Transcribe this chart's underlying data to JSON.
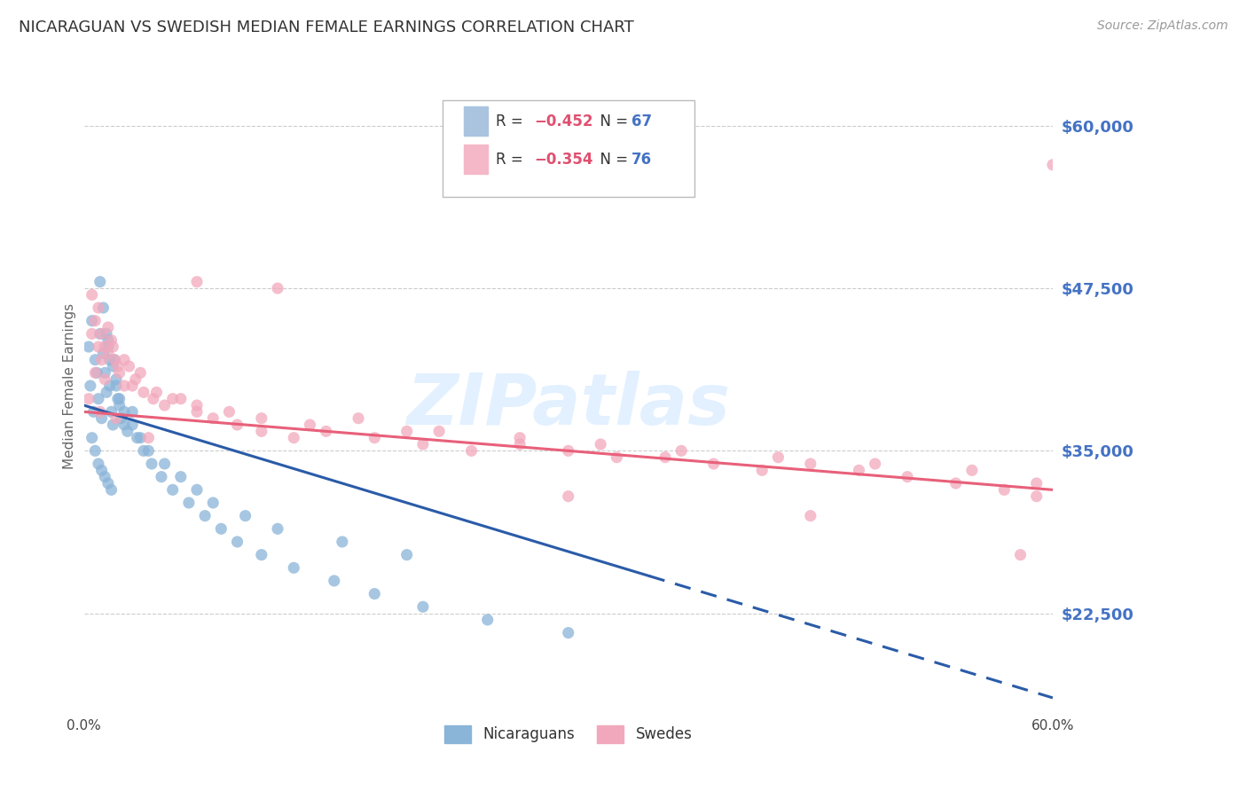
{
  "title": "NICARAGUAN VS SWEDISH MEDIAN FEMALE EARNINGS CORRELATION CHART",
  "source": "Source: ZipAtlas.com",
  "ylabel": "Median Female Earnings",
  "yticks": [
    22500,
    35000,
    47500,
    60000
  ],
  "ytick_labels": [
    "$22,500",
    "$35,000",
    "$47,500",
    "$60,000"
  ],
  "xmin": 0.0,
  "xmax": 60.0,
  "ymin": 15000,
  "ymax": 65000,
  "watermark": "ZIPatlas",
  "blue_scatter_color": "#8ab4d8",
  "pink_scatter_color": "#f2a8bc",
  "blue_line_color": "#2a5ba8",
  "pink_line_color": "#e8607a",
  "title_color": "#333333",
  "axis_label_color": "#666666",
  "tick_label_color": "#4472c4",
  "grid_color": "#cccccc",
  "blue_legend_fill": "#aac4e0",
  "pink_legend_fill": "#f4b8c8",
  "legend_r_color": "#e05070",
  "legend_n_color": "#4472c4",
  "nic_x": [
    0.3,
    0.4,
    0.5,
    0.6,
    0.7,
    0.8,
    0.9,
    1.0,
    1.1,
    1.2,
    1.3,
    1.4,
    1.5,
    1.6,
    1.7,
    1.8,
    1.9,
    2.0,
    2.1,
    2.2,
    2.3,
    2.5,
    2.7,
    3.0,
    3.3,
    3.7,
    4.2,
    4.8,
    5.5,
    6.5,
    7.5,
    8.5,
    9.5,
    11.0,
    13.0,
    15.5,
    18.0,
    21.0,
    25.0,
    30.0,
    1.0,
    1.2,
    1.4,
    1.5,
    1.6,
    1.8,
    2.0,
    2.2,
    2.5,
    3.0,
    3.5,
    4.0,
    5.0,
    6.0,
    7.0,
    8.0,
    10.0,
    12.0,
    16.0,
    20.0,
    0.5,
    0.7,
    0.9,
    1.1,
    1.3,
    1.5,
    1.7
  ],
  "nic_y": [
    43000,
    40000,
    45000,
    38000,
    42000,
    41000,
    39000,
    44000,
    37500,
    42500,
    41000,
    39500,
    43000,
    40000,
    38000,
    37000,
    42000,
    40500,
    39000,
    38500,
    37500,
    37000,
    36500,
    38000,
    36000,
    35000,
    34000,
    33000,
    32000,
    31000,
    30000,
    29000,
    28000,
    27000,
    26000,
    25000,
    24000,
    23000,
    22000,
    21000,
    48000,
    46000,
    44000,
    43500,
    42000,
    41500,
    40000,
    39000,
    38000,
    37000,
    36000,
    35000,
    34000,
    33000,
    32000,
    31000,
    30000,
    29000,
    28000,
    27000,
    36000,
    35000,
    34000,
    33500,
    33000,
    32500,
    32000
  ],
  "swe_x": [
    0.3,
    0.5,
    0.7,
    0.9,
    1.1,
    1.3,
    1.5,
    1.7,
    1.9,
    2.2,
    2.5,
    2.8,
    3.2,
    3.7,
    4.3,
    5.0,
    6.0,
    7.0,
    8.0,
    9.5,
    11.0,
    13.0,
    15.0,
    18.0,
    21.0,
    24.0,
    27.0,
    30.0,
    33.0,
    36.0,
    39.0,
    42.0,
    45.0,
    48.0,
    51.0,
    54.0,
    57.0,
    59.0,
    0.5,
    0.7,
    0.9,
    1.1,
    1.3,
    1.5,
    1.8,
    2.1,
    2.5,
    3.0,
    3.5,
    4.5,
    5.5,
    7.0,
    9.0,
    11.0,
    14.0,
    17.0,
    22.0,
    27.0,
    32.0,
    37.0,
    43.0,
    49.0,
    55.0,
    59.0,
    1.0,
    2.0,
    4.0,
    7.0,
    12.0,
    20.0,
    30.0,
    45.0,
    58.0,
    60.0
  ],
  "swe_y": [
    39000,
    44000,
    41000,
    43000,
    42000,
    40500,
    44500,
    43500,
    42000,
    41000,
    40000,
    41500,
    40500,
    39500,
    39000,
    38500,
    39000,
    38000,
    37500,
    37000,
    36500,
    36000,
    36500,
    36000,
    35500,
    35000,
    35500,
    35000,
    34500,
    34500,
    34000,
    33500,
    34000,
    33500,
    33000,
    32500,
    32000,
    31500,
    47000,
    45000,
    46000,
    44000,
    43000,
    42500,
    43000,
    41500,
    42000,
    40000,
    41000,
    39500,
    39000,
    38500,
    38000,
    37500,
    37000,
    37500,
    36500,
    36000,
    35500,
    35000,
    34500,
    34000,
    33500,
    32500,
    38000,
    37500,
    36000,
    48000,
    47500,
    36500,
    31500,
    30000,
    27000,
    57000
  ],
  "blue_regr_x0": 0.0,
  "blue_regr_y0": 38500,
  "blue_regr_x1": 60.0,
  "blue_regr_y1": 16000,
  "blue_solid_end": 35.0,
  "pink_regr_x0": 0.0,
  "pink_regr_y0": 38000,
  "pink_regr_x1": 60.0,
  "pink_regr_y1": 32000
}
